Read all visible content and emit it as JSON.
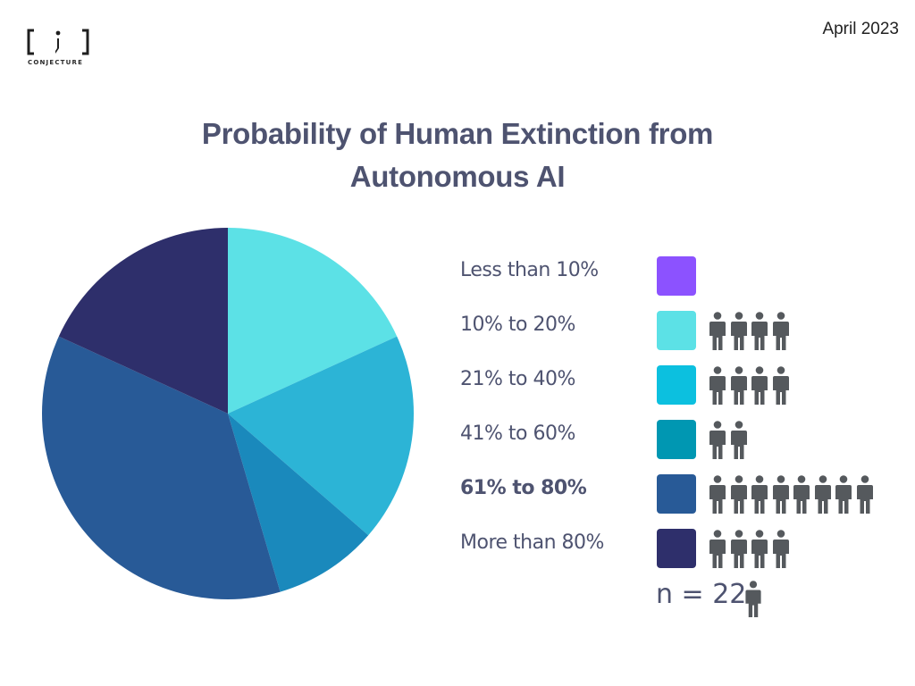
{
  "header": {
    "logo_text": "CONJECTURE",
    "date": "April 2023"
  },
  "colors": {
    "text": "#4e5370",
    "person_icon": "#55595d"
  },
  "chart_data": {
    "type": "pie",
    "title_line1": "Probability of Human Extinction from",
    "title_line2": "Autonomous AI",
    "n_label": "n = 22",
    "total": 22,
    "slices": [
      {
        "label": "Less than 10%",
        "value": 0,
        "color": "#8b4dff",
        "bold": false
      },
      {
        "label": "10% to 20%",
        "value": 4,
        "color": "#5ce1e6",
        "bold": false
      },
      {
        "label": "21% to 40%",
        "value": 4,
        "color": "#2cb4d6",
        "bold": false
      },
      {
        "label": "41% to 60%",
        "value": 2,
        "color": "#1a89bc",
        "bold": false
      },
      {
        "label": "61% to 80%",
        "value": 8,
        "color": "#285a97",
        "bold": true
      },
      {
        "label": "More than 80%",
        "value": 4,
        "color": "#2e2f6b",
        "bold": false
      }
    ],
    "legend_swatch_colors": [
      "#8c52ff",
      "#5ce1e6",
      "#0cc0df",
      "#0097b2",
      "#285a97",
      "#2e2f6b"
    ]
  }
}
